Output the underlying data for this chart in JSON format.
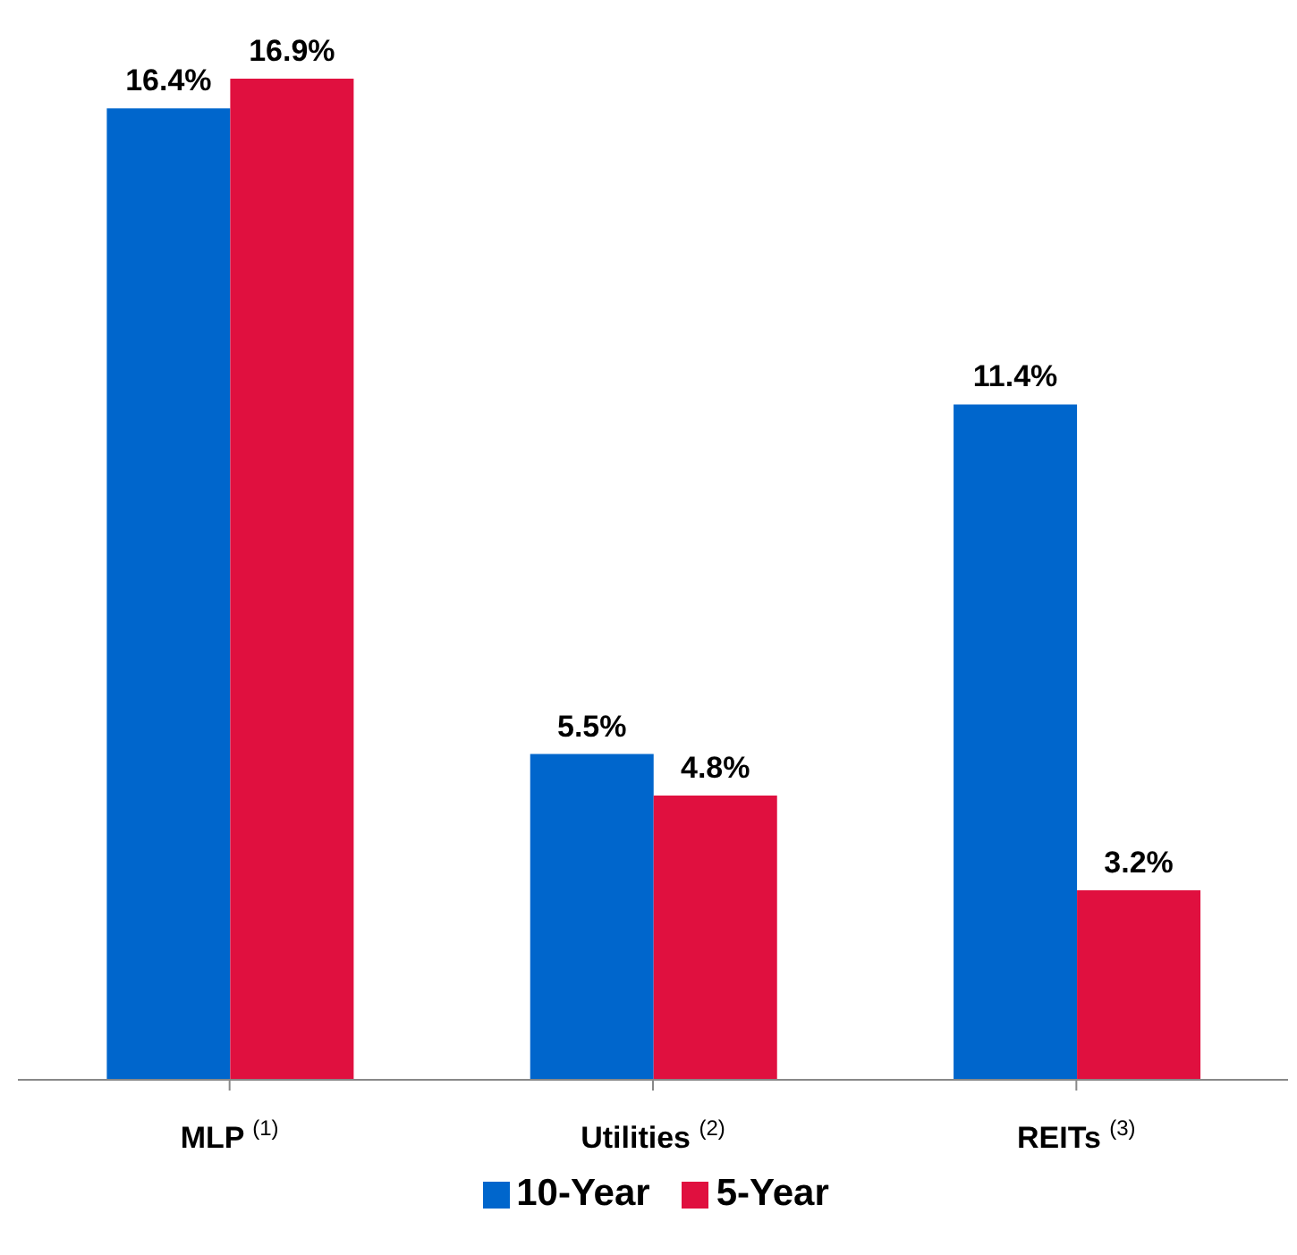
{
  "chart_data": {
    "type": "bar",
    "categories": [
      "MLP $^{(1)}$",
      "Utilities $^{(2)}$",
      "REITs $^{(3)}$"
    ],
    "series": [
      {
        "name": "10-Year",
        "color": "#0066cc",
        "values": [
          16.4,
          5.5,
          11.4
        ],
        "value_labels": [
          "16.4%",
          "5.5%",
          "11.4%"
        ]
      },
      {
        "name": "5-Year",
        "color": "#e0103f",
        "values": [
          16.9,
          4.8,
          3.2
        ],
        "value_labels": [
          "16.9%",
          "4.8%",
          "3.2%"
        ]
      }
    ],
    "legend": "bottom",
    "grid": false
  }
}
